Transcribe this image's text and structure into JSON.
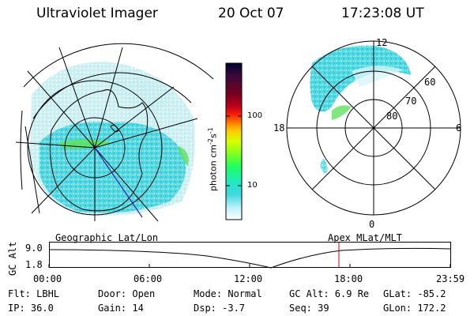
{
  "header": {
    "instrument": "Ultraviolet Imager",
    "date": "20 Oct 07",
    "time": "17:23:08 UT"
  },
  "colorbar": {
    "unit_label": "photon cm",
    "unit_exp1": "-2",
    "unit_s": "s",
    "unit_exp2": "-1",
    "tick_labels": [
      "100",
      "10"
    ],
    "colors": [
      "#000033",
      "#3a0a3a",
      "#7a0020",
      "#c0001a",
      "#ff2000",
      "#ff7a00",
      "#ffc800",
      "#d8ff00",
      "#80ff20",
      "#20ff60",
      "#20e8c0",
      "#40d8e0",
      "#b8f0f8",
      "#e8f8f8",
      "#ffffff"
    ]
  },
  "polar_plot": {
    "mlt_labels": [
      "12",
      "18",
      "6",
      "0"
    ],
    "lat_labels": [
      "60",
      "70",
      "80"
    ]
  },
  "orbit_plot": {
    "y_axis_label": "GC Alt",
    "y_ticks": [
      "9.0",
      "1.8"
    ],
    "left_title": "Geographic Lat/Lon",
    "right_title": "Apex MLat/MLT",
    "x_ticks": [
      "00:00",
      "06:00",
      "12:00",
      "18:00",
      "23:59"
    ]
  },
  "info": {
    "filter": "Flt: LBHL",
    "ip": "IP: 36.0",
    "door": "Door: Open",
    "gain": "Gain: 14",
    "mode": "Mode: Normal",
    "dsp": "Dsp:    -3.7",
    "gc_alt": "GC Alt: 6.9 Re",
    "seq": "Seq: 39",
    "glat": "GLat: -85.2",
    "glon": "GLon: 172.2"
  },
  "colors": {
    "aurora_cyan": "#40d8e0",
    "aurora_green": "#60e060",
    "marker_red": "#cc0000",
    "track_blue": "#2020c0"
  }
}
